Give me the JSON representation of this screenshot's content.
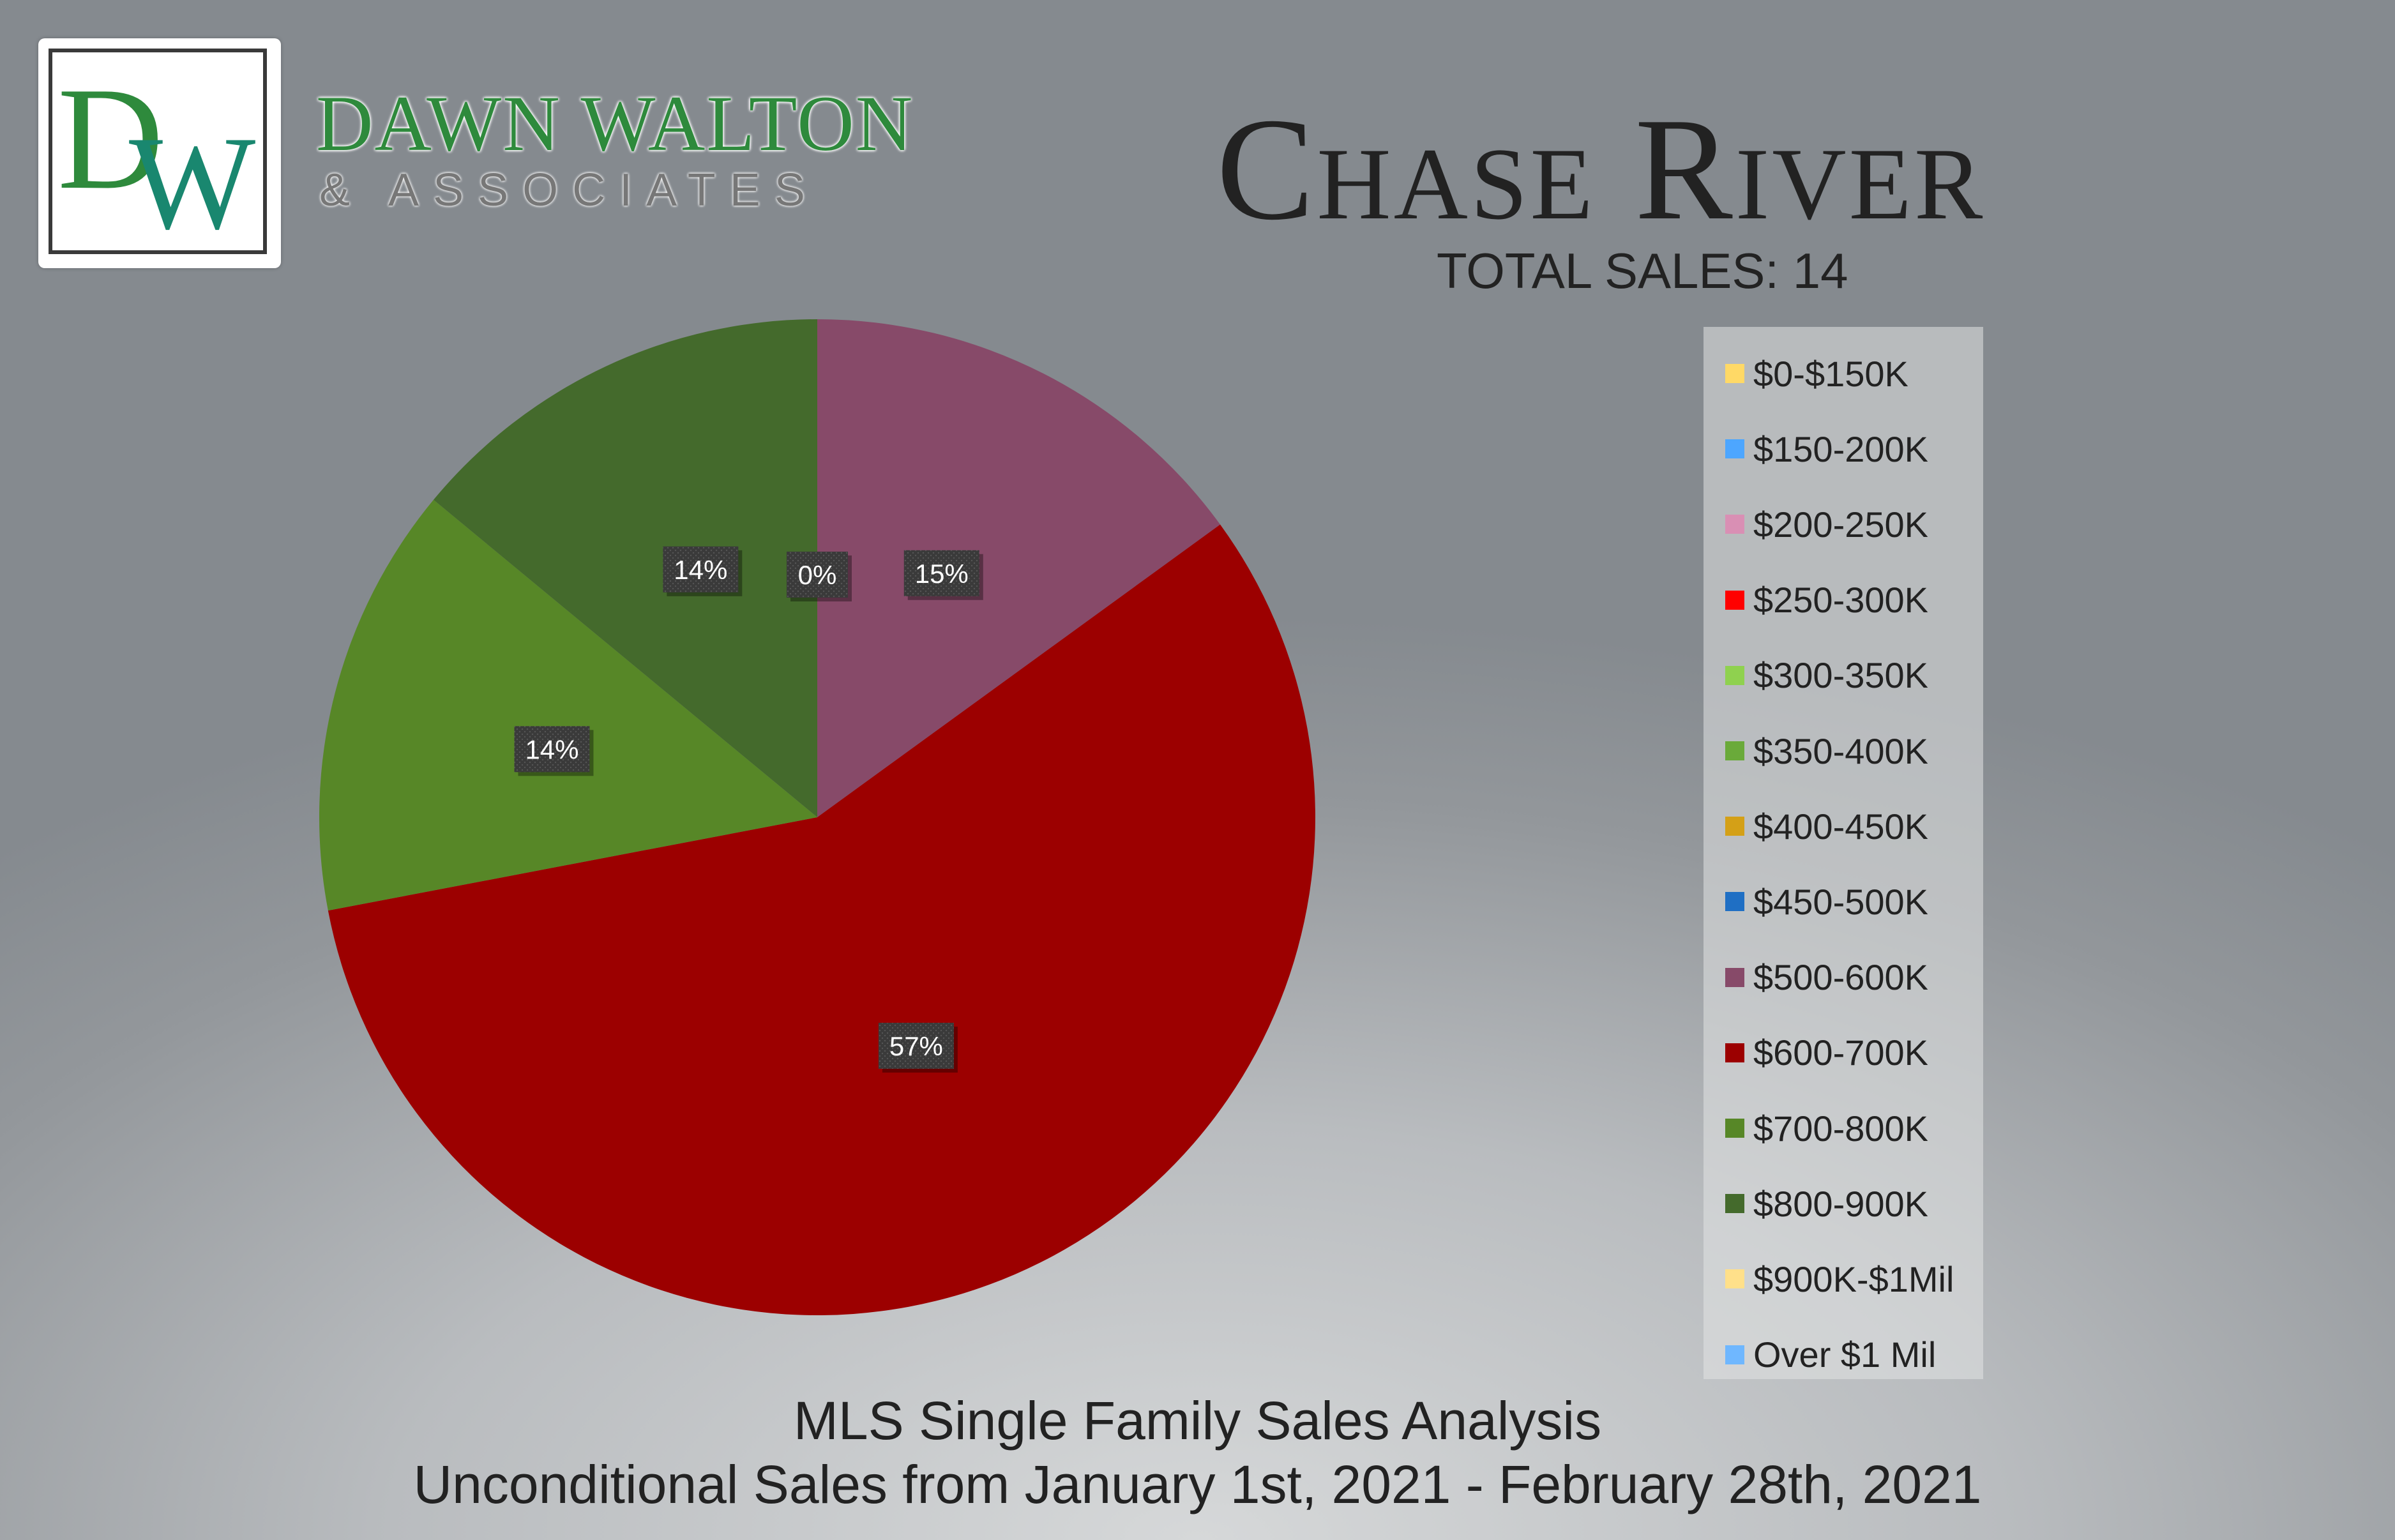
{
  "logo": {
    "mono_d": "D",
    "mono_w": "W",
    "name": "DAWN WALTON",
    "sub": "& ASSOCIATES"
  },
  "header": {
    "title": "Chase River",
    "total": "TOTAL SALES: 14"
  },
  "footer": {
    "line1": "MLS Single Family Sales Analysis",
    "line2": "Unconditional Sales from January 1st, 2021 - February 28th, 2021"
  },
  "chart_data": {
    "type": "pie",
    "title": "Chase River",
    "legend_position": "right",
    "slices": [
      {
        "label": "$0-$150K",
        "value": 0,
        "color": "#ffd966"
      },
      {
        "label": "$150-200K",
        "value": 0,
        "color": "#4da6ff"
      },
      {
        "label": "$200-250K",
        "value": 0,
        "color": "#d98fb4"
      },
      {
        "label": "$250-300K",
        "value": 0,
        "color": "#ff0000"
      },
      {
        "label": "$300-350K",
        "value": 0,
        "color": "#8fd14f"
      },
      {
        "label": "$350-400K",
        "value": 0,
        "color": "#6aaa3a"
      },
      {
        "label": "$400-450K",
        "value": 0,
        "color": "#d4a017"
      },
      {
        "label": "$450-500K",
        "value": 0,
        "color": "#1f6fc4"
      },
      {
        "label": "$500-600K",
        "value": 15,
        "color": "#874a69"
      },
      {
        "label": "$600-700K",
        "value": 57,
        "color": "#9c0000"
      },
      {
        "label": "$700-800K",
        "value": 14,
        "color": "#578727"
      },
      {
        "label": "$800-900K",
        "value": 14,
        "color": "#446a2c"
      },
      {
        "label": "$900K-$1Mil",
        "value": 0,
        "color": "#ffe08a"
      },
      {
        "label": "Over $1 Mil",
        "value": 0,
        "color": "#6fb7ff"
      }
    ],
    "data_labels": [
      "15%",
      "57%",
      "14%",
      "14%",
      "0%"
    ]
  }
}
